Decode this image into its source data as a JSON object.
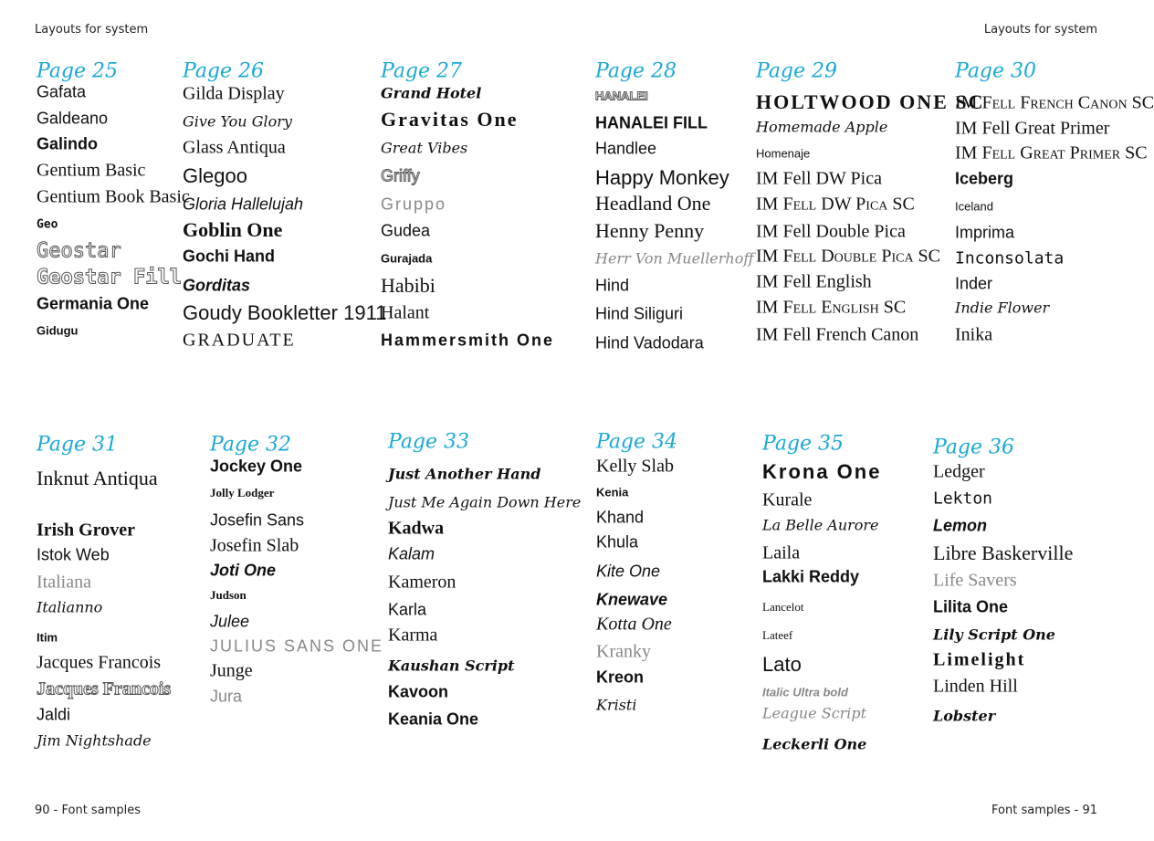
{
  "running_header": {
    "left": "Layouts for system",
    "right": "Layouts for system"
  },
  "footer": {
    "left": "90 - Font samples",
    "right": "Font samples - 91"
  },
  "header_color": "#1aa9d6",
  "pages": [
    {
      "title": "Page 25",
      "fonts": [
        "Gafata",
        "Galdeano",
        "Galindo",
        "Gentium Basic",
        "Gentium Book Basic",
        "Geo",
        "Geostar",
        "Geostar Fill",
        "Germania One",
        "Gidugu"
      ]
    },
    {
      "title": "Page 26",
      "fonts": [
        "Gilda Display",
        "Give You Glory",
        "Glass Antiqua",
        "Glegoo",
        "Gloria Hallelujah",
        "Goblin One",
        "Gochi Hand",
        "Gorditas",
        "Goudy Bookletter 1911",
        "GRADUATE"
      ]
    },
    {
      "title": "Page 27",
      "fonts": [
        "Grand Hotel",
        "Gravitas One",
        "Great Vibes",
        "Griffy",
        "Gruppo",
        "Gudea",
        "Gurajada",
        "Habibi",
        "Halant",
        "Hammersmith One"
      ]
    },
    {
      "title": "Page 28",
      "fonts": [
        "HANALEI",
        "HANALEI FILL",
        "Handlee",
        "Happy Monkey",
        "Headland One",
        "Henny Penny",
        "Herr Von Muellerhoff",
        "Hind",
        "Hind Siliguri",
        "Hind Vadodara"
      ]
    },
    {
      "title": "Page 29",
      "fonts": [
        "HOLTWOOD ONE SC",
        "Homemade Apple",
        "Homenaje",
        "IM Fell DW Pica",
        "IM Fell DW Pica SC",
        "IM Fell Double Pica",
        "IM Fell Double Pica SC",
        "IM Fell English",
        "IM Fell English SC",
        "IM Fell French Canon"
      ]
    },
    {
      "title": "Page 30",
      "fonts": [
        "IM Fell French Canon SC",
        "IM Fell Great Primer",
        "IM Fell Great Primer SC",
        "Iceberg",
        "Iceland",
        "Imprima",
        "Inconsolata",
        "Inder",
        "Indie Flower",
        "Inika"
      ]
    },
    {
      "title": "Page 31",
      "fonts": [
        "Inknut Antiqua",
        "Irish Grover",
        "Istok Web",
        "Italiana",
        "Italianno",
        "Itim",
        "Jacques Francois",
        "Jacques Francois",
        "Jaldi",
        "Jim Nightshade"
      ]
    },
    {
      "title": "Page 32",
      "fonts": [
        "Jockey One",
        "Jolly Lodger",
        "Josefin Sans",
        "Josefin Slab",
        "Joti One",
        "Judson",
        "Julee",
        "JULIUS SANS ONE",
        "Junge",
        "Jura"
      ]
    },
    {
      "title": "Page 33",
      "fonts": [
        "Just Another Hand",
        "Just Me Again Down Here",
        "Kadwa",
        "Kalam",
        "Kameron",
        "Karla",
        "Karma",
        "Kaushan Script",
        "Kavoon",
        "Keania One"
      ]
    },
    {
      "title": "Page 34",
      "fonts": [
        "Kelly Slab",
        "Kenia",
        "Khand",
        "Khula",
        "Kite One",
        "Knewave",
        "Kotta One",
        "Kranky",
        "Kreon",
        "Kristi"
      ]
    },
    {
      "title": "Page 35",
      "fonts": [
        "Krona One",
        "Kurale",
        "La Belle Aurore",
        "Laila",
        "Lakki Reddy",
        "Lancelot",
        "Lateef",
        "Lato",
        "Italic Ultra bold",
        "League Script",
        "Leckerli One"
      ]
    },
    {
      "title": "Page 36",
      "fonts": [
        "Ledger",
        "Lekton",
        "Lemon",
        "Libre Baskerville",
        "Life Savers",
        "Lilita One",
        "Lily Script One",
        "Limelight",
        "Linden Hill",
        "Lobster"
      ]
    }
  ]
}
